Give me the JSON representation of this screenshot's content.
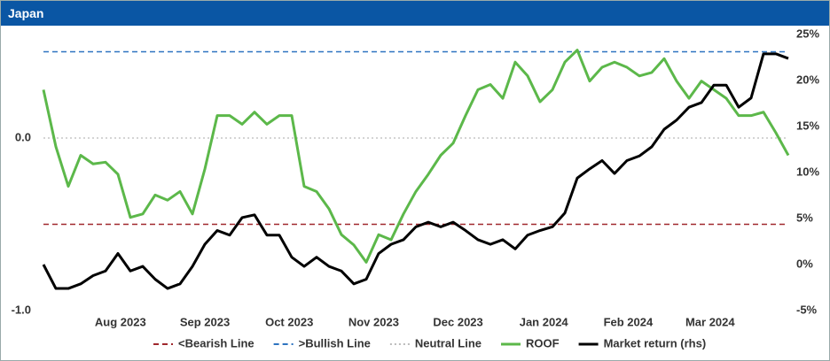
{
  "header": {
    "title": "Japan"
  },
  "chart_data": {
    "type": "line",
    "x": [
      0,
      1,
      2,
      3,
      4,
      5,
      6,
      7,
      8,
      9,
      10,
      11,
      12,
      13,
      14,
      15,
      16,
      17,
      18,
      19,
      20,
      21,
      22,
      23,
      24,
      25,
      26,
      27,
      28,
      29,
      30,
      31,
      32,
      33,
      34,
      35,
      36,
      37,
      38,
      39,
      40,
      41,
      42,
      43,
      44,
      45,
      46,
      47,
      48,
      49,
      50,
      51,
      52,
      53,
      54,
      55,
      56,
      57,
      58,
      59,
      60
    ],
    "xlim": [
      0,
      60
    ],
    "xticks": [
      {
        "value": 6.2,
        "label": "Aug 2023"
      },
      {
        "value": 13,
        "label": "Sep 2023"
      },
      {
        "value": 19.8,
        "label": "Oct 2023"
      },
      {
        "value": 26.6,
        "label": "Nov 2023"
      },
      {
        "value": 33.4,
        "label": "Dec 2023"
      },
      {
        "value": 40.3,
        "label": "Jan 2024"
      },
      {
        "value": 47.1,
        "label": "Feb 2024"
      },
      {
        "value": 53.7,
        "label": "Mar 2024"
      }
    ],
    "ylim": [
      -1.0,
      0.6
    ],
    "yticks": [
      {
        "value": -1.0,
        "label": "-1.0"
      },
      {
        "value": 0,
        "label": "0.0"
      }
    ],
    "y2lim": [
      -5,
      25
    ],
    "y2ticks": [
      {
        "value": -5,
        "label": "-5%"
      },
      {
        "value": 0,
        "label": "0%"
      },
      {
        "value": 5,
        "label": "5%"
      },
      {
        "value": 10,
        "label": "10%"
      },
      {
        "value": 15,
        "label": "15%"
      },
      {
        "value": 20,
        "label": "20%"
      },
      {
        "value": 25,
        "label": "25%"
      }
    ],
    "reference_lines": [
      {
        "name": "<Bearish Line",
        "value": -0.5,
        "color": "#a0282d",
        "style": "dashed"
      },
      {
        "name": ">Bullish Line",
        "value": 0.5,
        "color": "#2e74c0",
        "style": "dashed"
      },
      {
        "name": "Neutral Line",
        "value": 0,
        "color": "#bbbbbb",
        "style": "dotted"
      }
    ],
    "series": [
      {
        "name": "ROOF",
        "color": "#5cb84a",
        "values": [
          0.28,
          -0.05,
          -0.28,
          -0.1,
          -0.15,
          -0.14,
          -0.21,
          -0.46,
          -0.44,
          -0.33,
          -0.36,
          -0.31,
          -0.44,
          -0.18,
          0.13,
          0.13,
          0.08,
          0.15,
          0.08,
          0.13,
          0.13,
          -0.28,
          -0.31,
          -0.41,
          -0.56,
          -0.62,
          -0.72,
          -0.56,
          -0.59,
          -0.44,
          -0.31,
          -0.21,
          -0.1,
          -0.03,
          0.13,
          0.28,
          0.31,
          0.23,
          0.44,
          0.36,
          0.21,
          0.28,
          0.44,
          0.51,
          0.33,
          0.41,
          0.44,
          0.41,
          0.36,
          0.38,
          0.46,
          0.33,
          0.23,
          0.33,
          0.28,
          0.23,
          0.13,
          0.13,
          0.15,
          0.03,
          -0.1
        ]
      },
      {
        "name": "Market return (rhs)",
        "color": "#000000",
        "axis": "y2",
        "values": [
          0,
          -2.6,
          -2.6,
          -2.1,
          -1.2,
          -0.7,
          1.2,
          -0.7,
          -0.2,
          -1.6,
          -2.6,
          -2.1,
          -0.2,
          2.2,
          3.7,
          3.2,
          5.1,
          5.4,
          3.2,
          3.2,
          0.8,
          -0.2,
          0.8,
          -0.2,
          -0.7,
          -2.1,
          -1.6,
          1.2,
          2.2,
          2.7,
          4.1,
          4.6,
          4.1,
          4.6,
          3.7,
          2.7,
          2.2,
          2.7,
          1.7,
          3.2,
          3.7,
          4.1,
          5.6,
          9.4,
          10.4,
          11.3,
          9.9,
          11.3,
          11.8,
          12.8,
          14.7,
          15.7,
          17.1,
          17.6,
          19.5,
          19.5,
          17.1,
          18.1,
          22.9,
          22.9,
          22.4
        ]
      }
    ]
  }
}
